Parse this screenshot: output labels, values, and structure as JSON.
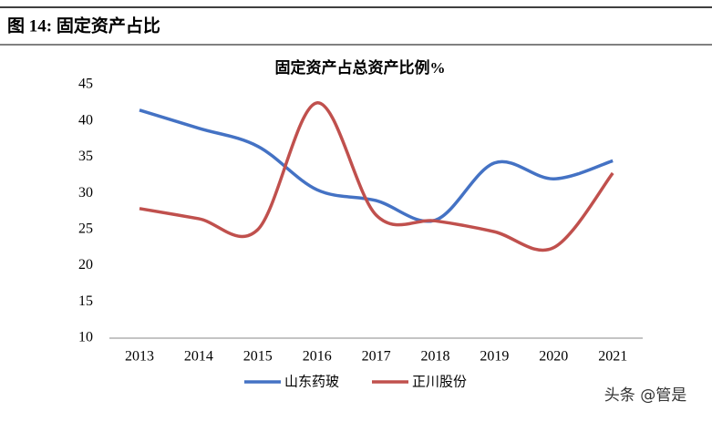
{
  "header": {
    "title": "图 14:  固定资产占比"
  },
  "chart_data": {
    "type": "line",
    "title": "固定资产占总资产比例%",
    "categories": [
      "2013",
      "2014",
      "2015",
      "2016",
      "2017",
      "2018",
      "2019",
      "2020",
      "2021"
    ],
    "series": [
      {
        "name": "山东药玻",
        "color": "#4472c4",
        "values": [
          41.5,
          39,
          36.5,
          30.5,
          29,
          26.3,
          34.2,
          32,
          34.5
        ]
      },
      {
        "name": "正川股份",
        "color": "#c0504d",
        "values": [
          27.9,
          26.5,
          25,
          42.5,
          27,
          26.2,
          24.7,
          22.5,
          32.8
        ]
      }
    ],
    "ylim": [
      10,
      45
    ],
    "yticks": [
      10,
      15,
      20,
      25,
      30,
      35,
      40,
      45
    ],
    "smooth": true
  },
  "watermark": "头条 @管是"
}
